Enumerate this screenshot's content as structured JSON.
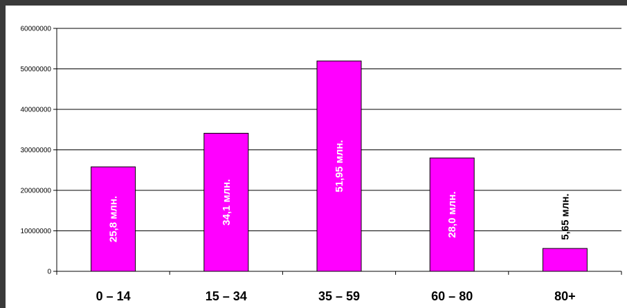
{
  "chart_data": {
    "type": "bar",
    "title": "",
    "xlabel": "",
    "ylabel": "",
    "categories": [
      "0 – 14",
      "15 – 34",
      "35 – 59",
      "60 – 80",
      "80+"
    ],
    "values": [
      25800000,
      34100000,
      51950000,
      28000000,
      5650000
    ],
    "data_labels": [
      "25,8 млн.",
      "34,1 млн.",
      "51,95 млн.",
      "28,0 млн.",
      "5,65 млн."
    ],
    "ylim": [
      0,
      60000000
    ],
    "yticks": [
      0,
      10000000,
      20000000,
      30000000,
      40000000,
      50000000,
      60000000
    ],
    "ytick_labels": [
      "0",
      "10000000",
      "20000000",
      "30000000",
      "40000000",
      "50000000",
      "60000000"
    ],
    "grid": true,
    "legend": "none",
    "bar_color": "#ff00ff"
  }
}
